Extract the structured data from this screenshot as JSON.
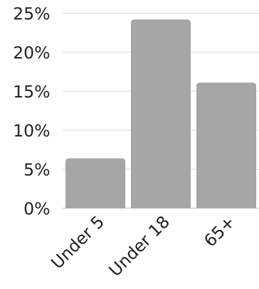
{
  "chart_data": {
    "type": "bar",
    "categories": [
      "Under 5",
      "Under 18",
      "65+"
    ],
    "values": [
      6.4,
      24.2,
      16.1
    ],
    "title": "",
    "xlabel": "",
    "ylabel": "",
    "ylim": [
      0,
      25
    ],
    "yticks": [
      0,
      5,
      10,
      15,
      20,
      25
    ],
    "ytick_labels": [
      "0%",
      "5%",
      "10%",
      "15%",
      "20%",
      "25%"
    ],
    "grid": true,
    "bar_color": "#a6a6a6",
    "grid_color": "#d9d9d9",
    "axis_color": "#bfbfbf"
  }
}
